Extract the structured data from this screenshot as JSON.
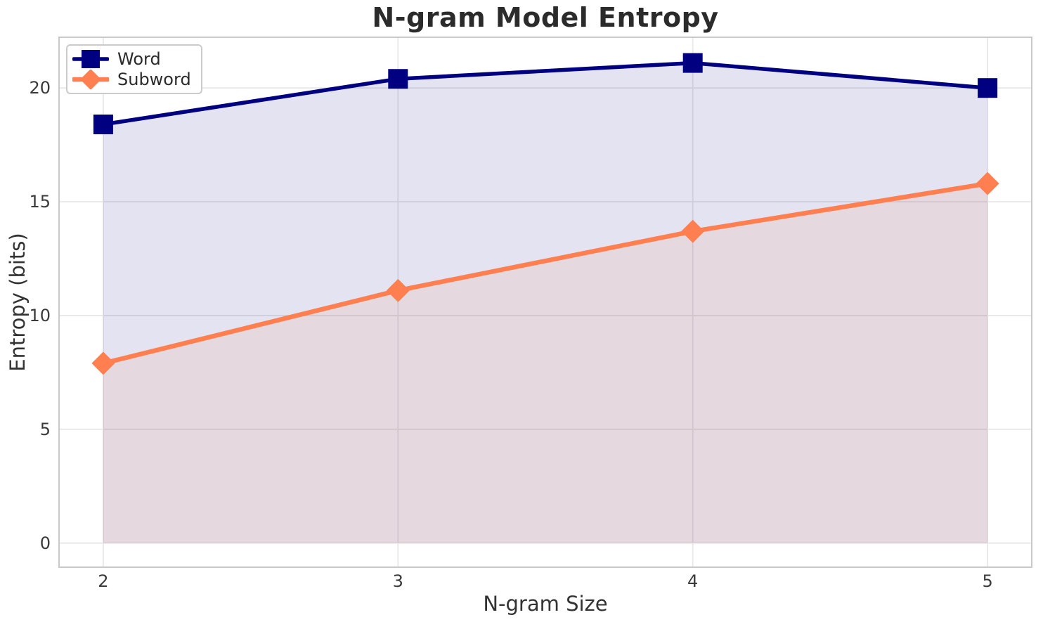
{
  "chart_data": {
    "type": "line",
    "title": "N-gram Model Entropy",
    "xlabel": "N-gram Size",
    "ylabel": "Entropy (bits)",
    "x": [
      2,
      3,
      4,
      5
    ],
    "series": [
      {
        "name": "Word",
        "values": [
          18.4,
          20.4,
          21.1,
          20.0
        ],
        "color": "#000080",
        "marker": "square",
        "line_width": 5.5,
        "marker_size": 28,
        "fill_to_zero": true,
        "fill_opacity": 0.11
      },
      {
        "name": "Subword",
        "values": [
          7.9,
          11.1,
          13.7,
          15.8
        ],
        "color": "#FF7F50",
        "marker": "diamond",
        "line_width": 6.5,
        "marker_size": 33,
        "fill_to_zero": true,
        "fill_opacity": 0.11
      }
    ],
    "xtick_values": [
      2,
      3,
      4,
      5
    ],
    "xtick_labels": [
      "2",
      "3",
      "4",
      "5"
    ],
    "ytick_values": [
      0,
      5,
      10,
      15,
      20
    ],
    "ytick_labels": [
      "0",
      "5",
      "10",
      "15",
      "20"
    ],
    "xlim": [
      1.85,
      5.15
    ],
    "ylim": [
      -1.06,
      22.23
    ],
    "fill_baseline": 0,
    "grid": true,
    "legend_position": "upper-left",
    "colors": {
      "background": "#ffffff",
      "grid": "#e8e8e8",
      "spine": "#c9c9c9",
      "tick_text": "#3a3a3a",
      "title_text": "#2b2b2b"
    }
  }
}
